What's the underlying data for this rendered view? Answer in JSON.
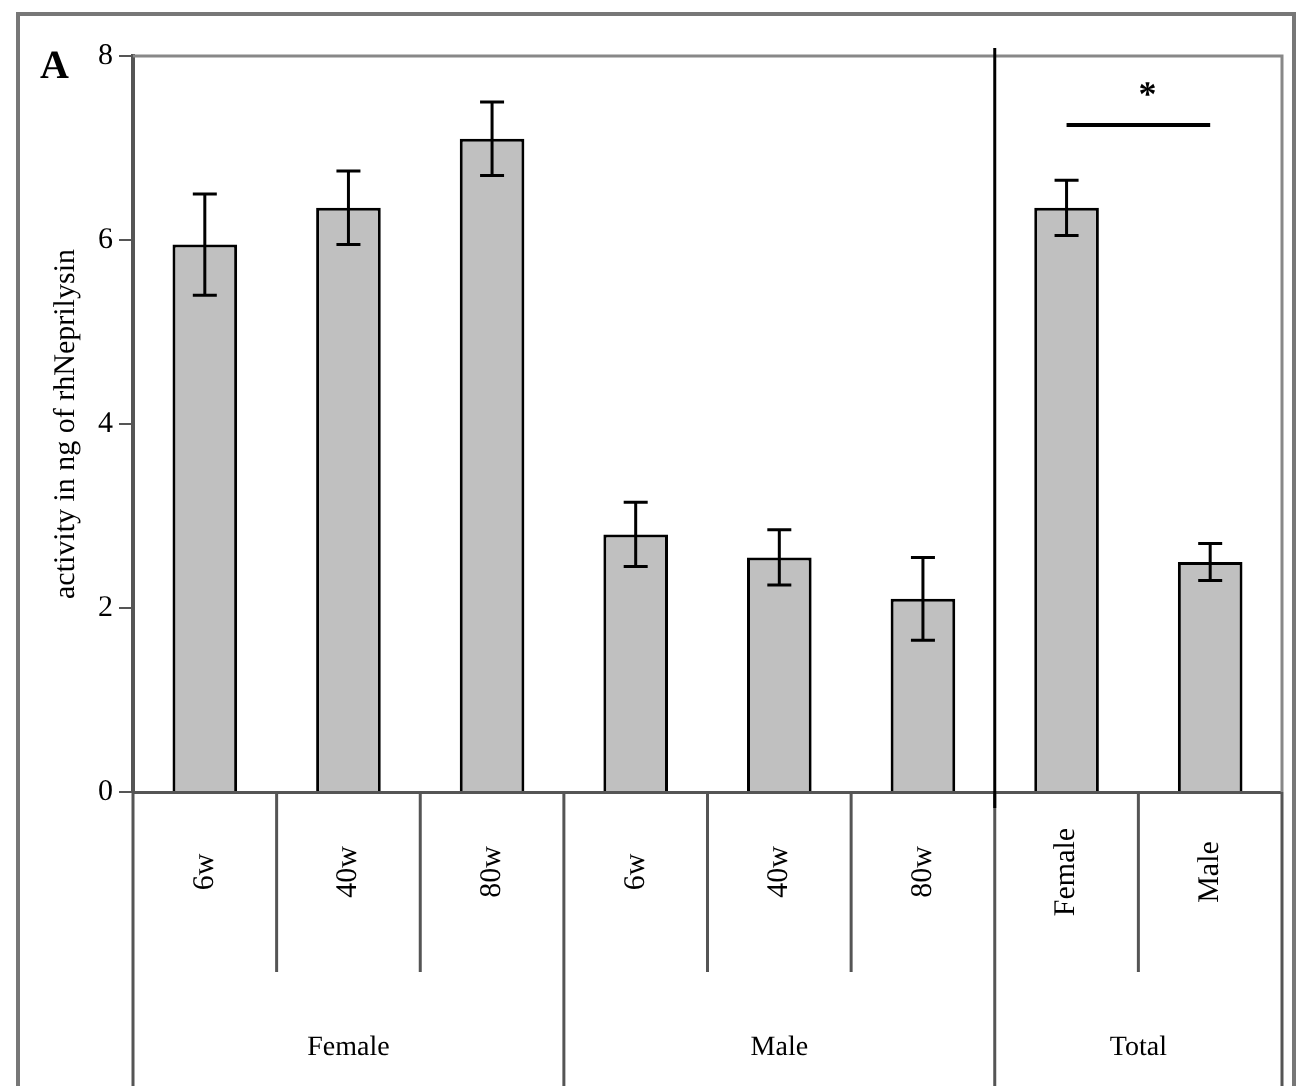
{
  "chart_data": {
    "type": "bar",
    "ylabel": "activity in ng of rhNeprilysin",
    "categories": [
      "6w",
      "40w",
      "80w",
      "6w",
      "40w",
      "80w",
      "Female",
      "Male"
    ],
    "values": [
      5.95,
      6.35,
      7.1,
      2.8,
      2.55,
      2.1,
      6.35,
      2.5
    ],
    "errors": [
      0.55,
      0.4,
      0.4,
      0.35,
      0.3,
      0.45,
      0.3,
      0.2
    ],
    "color": "#c0c0c0",
    "ylim": [
      0,
      8
    ],
    "yticks": [
      0,
      2,
      4,
      6,
      8
    ],
    "grid": false,
    "legend": false,
    "annotations": [
      "A",
      "*",
      "Female",
      "Male",
      "Total"
    ]
  }
}
